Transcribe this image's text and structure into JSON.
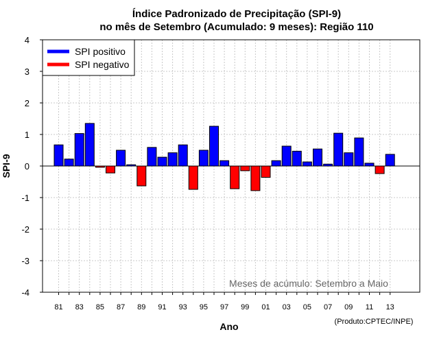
{
  "chart_data": {
    "type": "bar",
    "title_line1": "Índice Padronizado de Precipitação (SPI-9)",
    "title_line2": "no mês de Setembro (Acumulado: 9 meses): Região 110",
    "ylabel": "SPI-9",
    "xlabel": "Ano",
    "ylim": [
      -4,
      4
    ],
    "yticks": [
      "4",
      "3",
      "2",
      "1",
      "0",
      "-1",
      "-2",
      "-3",
      "-4"
    ],
    "ytick_values": [
      4,
      3,
      2,
      1,
      0,
      -1,
      -2,
      -3,
      -4
    ],
    "xtick_labels": [
      "81",
      "83",
      "85",
      "87",
      "89",
      "91",
      "93",
      "95",
      "97",
      "99",
      "01",
      "03",
      "05",
      "07",
      "09",
      "11",
      "13"
    ],
    "years": [
      1981,
      1982,
      1983,
      1984,
      1985,
      1986,
      1987,
      1988,
      1989,
      1990,
      1991,
      1992,
      1993,
      1994,
      1995,
      1996,
      1997,
      1998,
      1999,
      2000,
      2001,
      2002,
      2003,
      2004,
      2005,
      2006,
      2007,
      2008,
      2009,
      2010,
      2011,
      2012,
      2013
    ],
    "values": [
      0.67,
      0.22,
      1.03,
      1.35,
      -0.04,
      -0.22,
      0.5,
      0.04,
      -0.63,
      0.59,
      0.28,
      0.42,
      0.67,
      -0.74,
      0.5,
      1.26,
      0.17,
      -0.72,
      -0.15,
      -0.78,
      -0.36,
      0.17,
      0.63,
      0.47,
      0.13,
      0.54,
      0.06,
      1.04,
      0.42,
      0.89,
      0.09,
      -0.24,
      0.37
    ],
    "positive_color": "#0000ff",
    "negative_color": "#ff0000",
    "legend": {
      "positive": "SPI positivo",
      "negative": "SPI negativo",
      "placement": "top-left"
    },
    "grid": true,
    "annotation": "Meses de acúmulo: Setembro a Maio",
    "credit": "(Produto:CPTEC/INPE)"
  }
}
